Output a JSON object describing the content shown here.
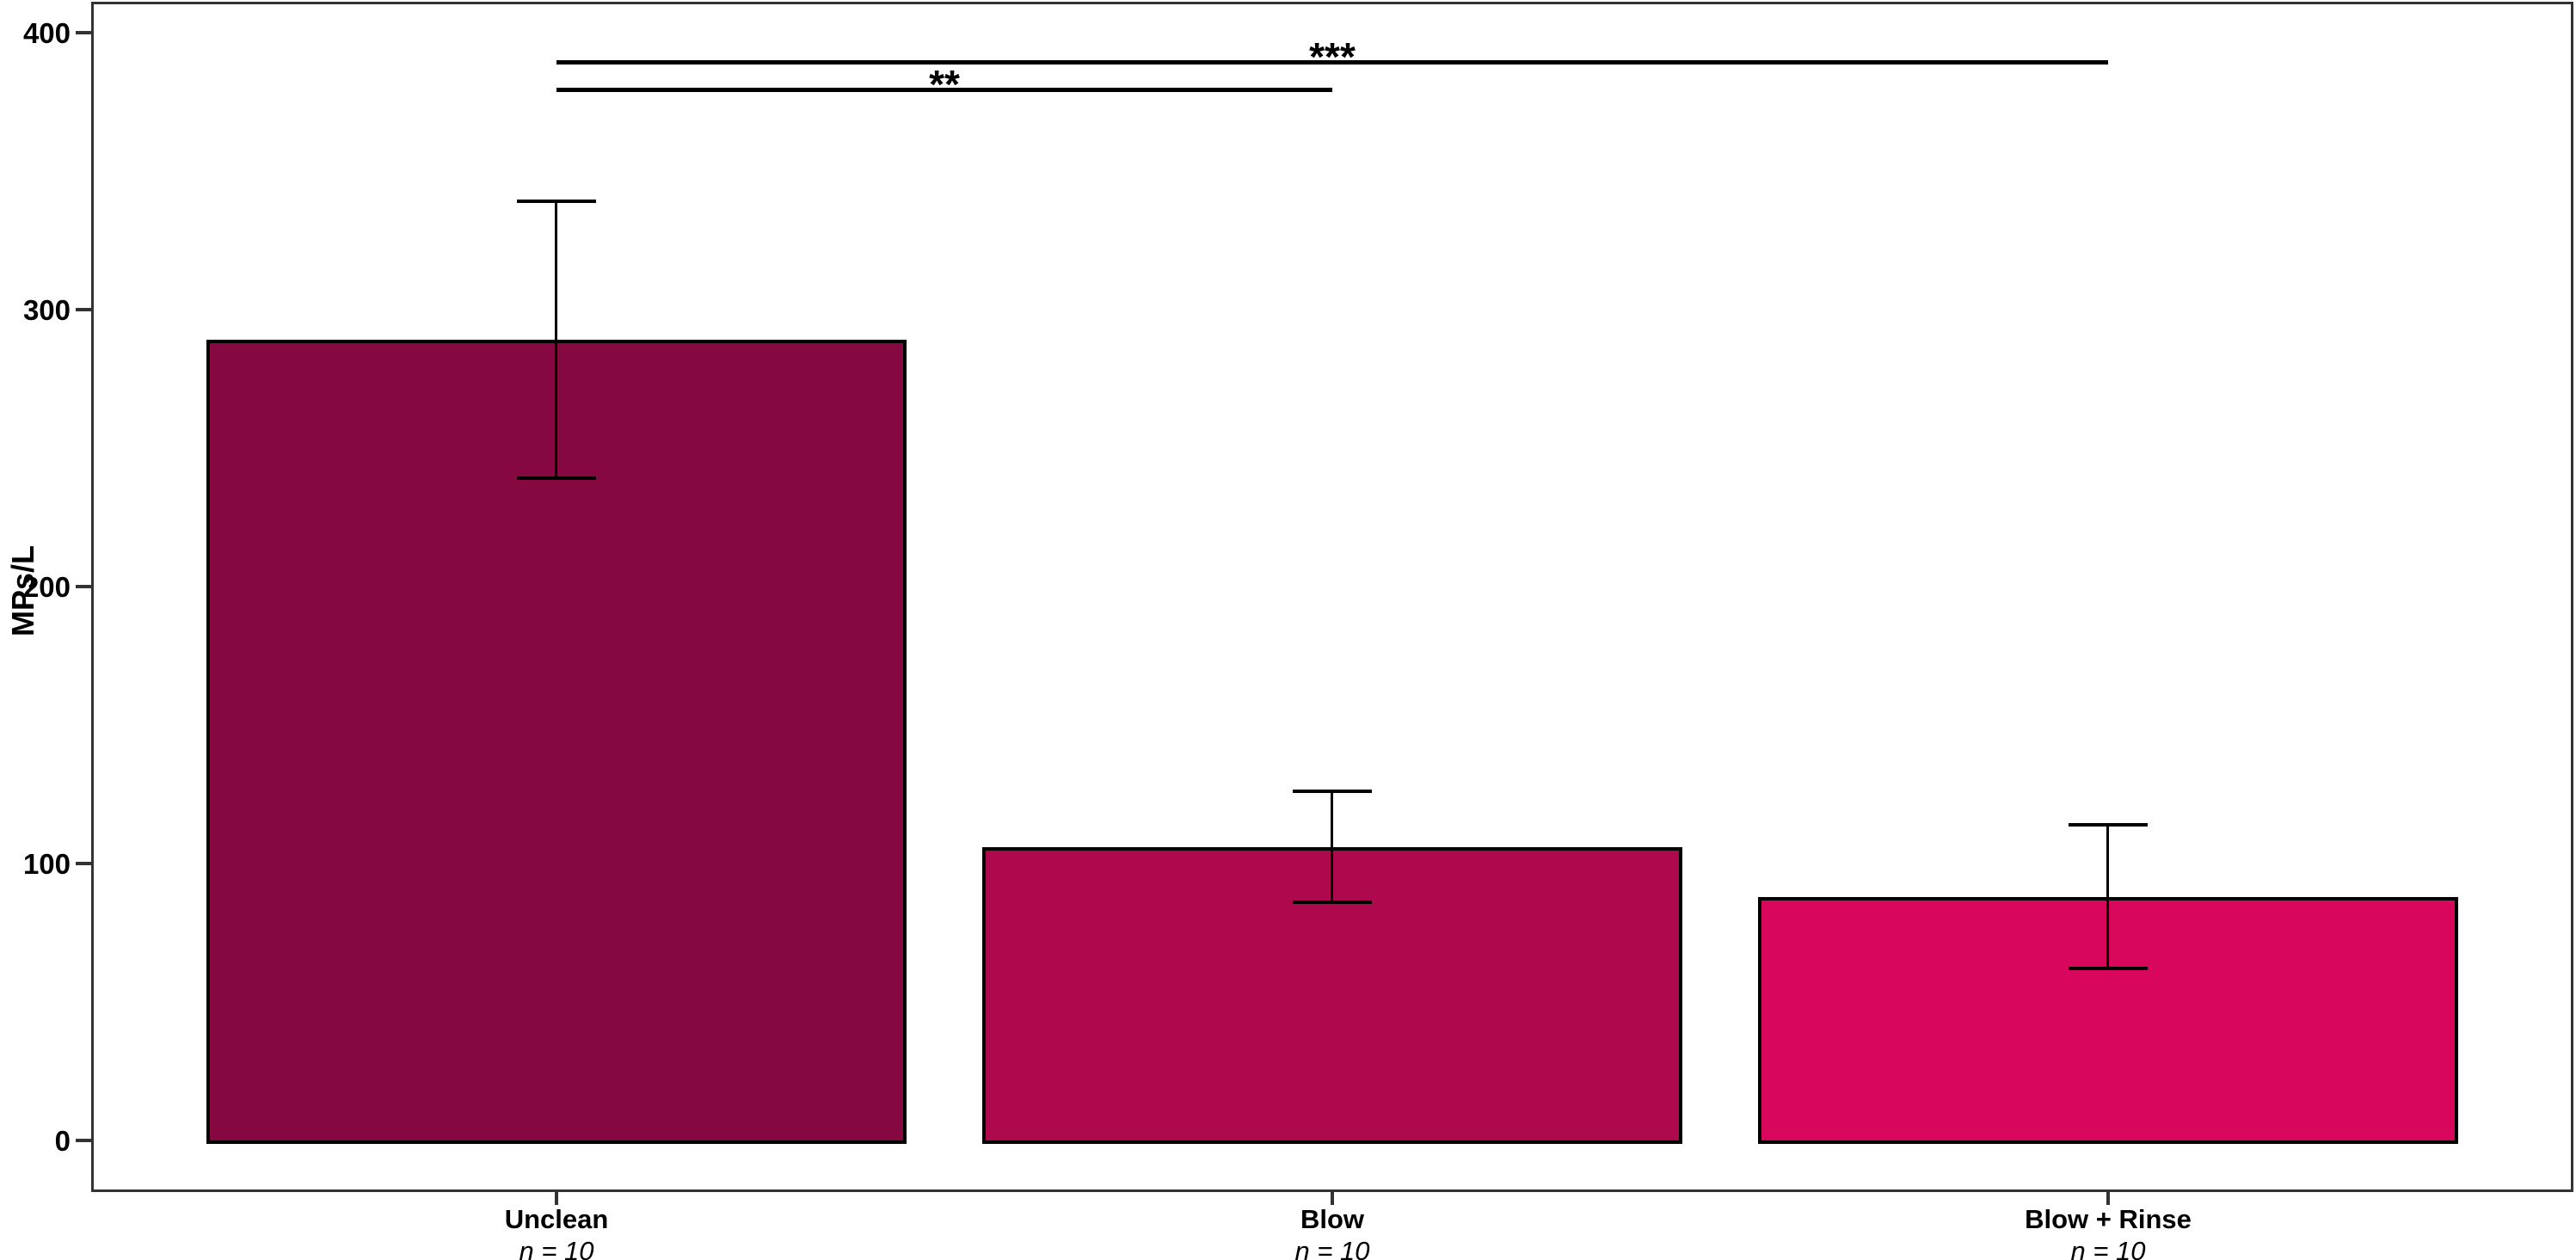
{
  "chart_data": {
    "type": "bar",
    "title": "",
    "ylabel": "MPs/L",
    "xlabel": "",
    "categories": [
      "Unclean",
      "Blow",
      "Blow + Rinse"
    ],
    "n_labels": [
      "n = 10",
      "n = 10",
      "n = 10"
    ],
    "values": [
      289,
      106,
      88
    ],
    "errors_upper": [
      339,
      126,
      114
    ],
    "errors_lower": [
      239,
      86,
      62
    ],
    "bar_colors": [
      "#860840",
      "#AE094C",
      "#D8075C"
    ],
    "bar_edge_color": "#000000",
    "ylim": [
      0,
      400
    ],
    "yticks": [
      0,
      100,
      200,
      300,
      400
    ],
    "grid": false,
    "legend": false,
    "significance": [
      {
        "from": 0,
        "to": 1,
        "label": "**",
        "y": 380
      },
      {
        "from": 0,
        "to": 2,
        "label": "***",
        "y": 390
      }
    ]
  },
  "colors": {
    "axis": "#333333",
    "text": "#000000",
    "background": "#ffffff"
  }
}
